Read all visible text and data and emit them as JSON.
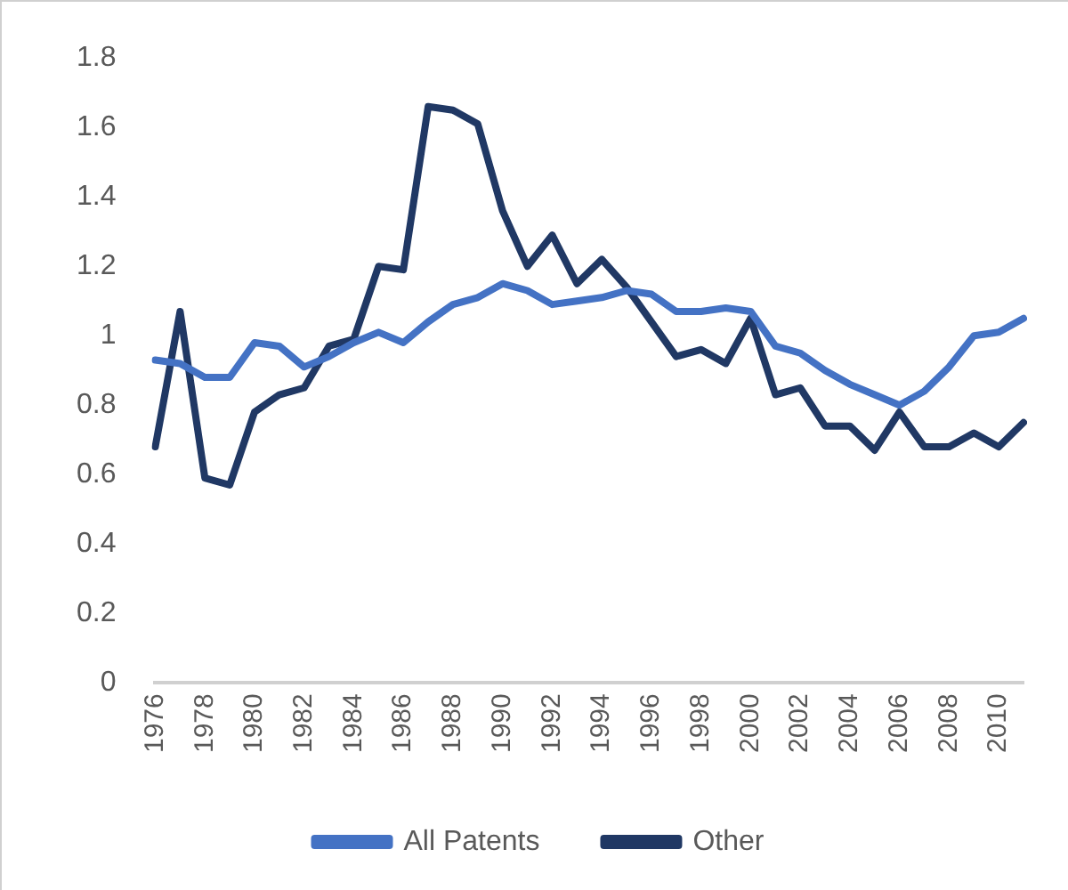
{
  "chart_data": {
    "type": "line",
    "categories": [
      "1976",
      null,
      "1978",
      null,
      "1980",
      null,
      "1982",
      null,
      "1984",
      null,
      "1986",
      null,
      "1988",
      null,
      "1990",
      null,
      "1992",
      null,
      "1994",
      null,
      "1996",
      null,
      "1998",
      null,
      "2000",
      null,
      "2002",
      null,
      "2004",
      null,
      "2006",
      null,
      "2008",
      null,
      "2010",
      null
    ],
    "series": [
      {
        "name": "All Patents",
        "color": "#4472c4",
        "values": [
          0.93,
          0.92,
          0.88,
          0.88,
          0.98,
          0.97,
          0.91,
          0.94,
          0.98,
          1.01,
          0.98,
          1.04,
          1.09,
          1.11,
          1.15,
          1.13,
          1.09,
          1.1,
          1.11,
          1.13,
          1.12,
          1.07,
          1.07,
          1.08,
          1.07,
          0.97,
          0.95,
          0.9,
          0.86,
          0.83,
          0.8,
          0.84,
          0.91,
          1.0,
          1.01,
          1.05
        ]
      },
      {
        "name": "Other",
        "color": "#203864",
        "values": [
          0.68,
          1.07,
          0.59,
          0.57,
          0.78,
          0.83,
          0.85,
          0.97,
          0.99,
          1.2,
          1.19,
          1.66,
          1.65,
          1.61,
          1.36,
          1.2,
          1.29,
          1.15,
          1.22,
          1.14,
          1.04,
          0.94,
          0.96,
          0.92,
          1.05,
          0.83,
          0.85,
          0.74,
          0.74,
          0.67,
          0.78,
          0.68,
          0.68,
          0.72,
          0.68,
          0.75
        ]
      }
    ],
    "ylim": [
      0,
      1.8
    ],
    "yticks": [
      0,
      0.2,
      0.4,
      0.6,
      0.8,
      1,
      1.2,
      1.4,
      1.6,
      1.8
    ],
    "grid": false,
    "legend": "bottom",
    "marker": "none",
    "line_style": "solid"
  }
}
